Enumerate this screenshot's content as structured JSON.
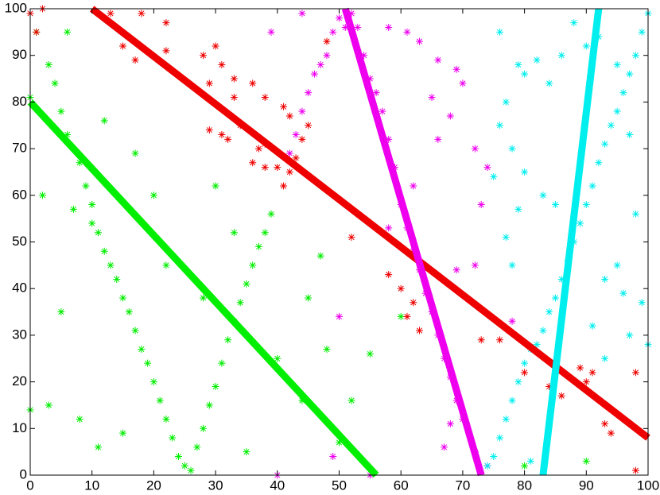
{
  "chart_data": {
    "type": "scatter",
    "xlim": [
      0,
      100
    ],
    "ylim": [
      0,
      100
    ],
    "xticks": [
      0,
      10,
      20,
      30,
      40,
      50,
      60,
      70,
      80,
      90,
      100
    ],
    "yticks": [
      0,
      10,
      20,
      30,
      40,
      50,
      60,
      70,
      80,
      90,
      100
    ],
    "grid": false,
    "series": [
      {
        "mode": "markers",
        "color": "#00ee00",
        "x": [
          0,
          1,
          3,
          4,
          5,
          6,
          7,
          8,
          9,
          10,
          10,
          11,
          12,
          13,
          14,
          15,
          16,
          17,
          18,
          19,
          20,
          21,
          22,
          23,
          24,
          25,
          26,
          27,
          28,
          29,
          30,
          31,
          32,
          33,
          34,
          35,
          36,
          37,
          38,
          39,
          6,
          2,
          5,
          8,
          11,
          15,
          20,
          30,
          35,
          40,
          45,
          48,
          50,
          52,
          3,
          0,
          7,
          12,
          17,
          22,
          28,
          44,
          33,
          60,
          80,
          90,
          55,
          47
        ],
        "y": [
          81,
          95,
          88,
          84,
          78,
          73,
          70,
          67,
          62,
          58,
          54,
          52,
          48,
          45,
          42,
          38,
          35,
          31,
          27,
          24,
          20,
          16,
          12,
          8,
          4,
          2,
          1,
          6,
          10,
          15,
          19,
          24,
          29,
          33,
          37,
          41,
          45,
          49,
          52,
          56,
          95,
          60,
          35,
          12,
          6,
          9,
          60,
          62,
          5,
          25,
          38,
          27,
          7,
          16,
          15,
          14,
          57,
          76,
          69,
          45,
          38,
          16,
          52,
          34,
          2,
          3,
          26,
          47
        ]
      },
      {
        "mode": "markers",
        "color": "#ee0000",
        "x": [
          0,
          1,
          2,
          13,
          18,
          15,
          17,
          22,
          22,
          28,
          30,
          29,
          31,
          33,
          33,
          36,
          38,
          34,
          37,
          38,
          40,
          41,
          42,
          43,
          44,
          45,
          41,
          42,
          36,
          29,
          31,
          38,
          52,
          58,
          60,
          61,
          62,
          63,
          73,
          76,
          80,
          84,
          86,
          89,
          90,
          91,
          93,
          94,
          98,
          99,
          98,
          48,
          32
        ],
        "y": [
          99,
          95,
          100,
          99,
          99,
          92,
          89,
          97,
          91,
          90,
          92,
          84,
          88,
          85,
          81,
          84,
          81,
          75,
          70,
          66,
          66,
          62,
          65,
          68,
          72,
          75,
          79,
          77,
          67,
          74,
          73,
          71,
          51,
          43,
          40,
          34,
          37,
          31,
          29,
          29,
          22,
          19,
          17,
          23,
          20,
          22,
          11,
          9,
          22,
          9,
          1,
          93,
          72
        ]
      },
      {
        "mode": "markers",
        "color": "#ee00ee",
        "x": [
          42,
          43,
          44,
          45,
          46,
          47,
          48,
          49,
          50,
          51,
          52,
          53,
          54,
          55,
          56,
          57,
          58,
          59,
          60,
          61,
          62,
          63,
          64,
          65,
          66,
          67,
          68,
          69,
          70,
          71,
          72,
          74,
          39,
          44,
          58,
          61,
          63,
          66,
          69,
          70,
          72,
          74,
          66,
          68,
          65,
          62,
          73,
          72,
          69,
          58,
          55,
          49,
          50,
          40,
          78,
          68,
          67
        ],
        "y": [
          69,
          73,
          78,
          82,
          86,
          88,
          90,
          95,
          98,
          96,
          99,
          96,
          90,
          85,
          82,
          78,
          72,
          66,
          58,
          53,
          48,
          44,
          39,
          35,
          30,
          25,
          21,
          16,
          12,
          9,
          5,
          2,
          95,
          99,
          96,
          95,
          93,
          89,
          87,
          84,
          70,
          66,
          72,
          77,
          81,
          62,
          58,
          45,
          44,
          53,
          0,
          4,
          34,
          0,
          33,
          11,
          6
        ]
      },
      {
        "mode": "markers",
        "color": "#00eeee",
        "x": [
          74,
          75,
          76,
          77,
          78,
          79,
          80,
          81,
          82,
          83,
          84,
          85,
          86,
          87,
          88,
          89,
          90,
          91,
          92,
          93,
          94,
          95,
          96,
          97,
          98,
          99,
          100,
          76,
          77,
          79,
          80,
          82,
          84,
          86,
          88,
          90,
          92,
          95,
          97,
          98,
          99,
          100,
          97,
          95,
          93,
          76,
          78,
          80,
          83,
          85,
          79,
          77,
          78,
          91,
          93,
          96,
          81,
          75
        ],
        "y": [
          2,
          4,
          8,
          12,
          16,
          20,
          24,
          27,
          28,
          31,
          35,
          38,
          42,
          46,
          50,
          54,
          58,
          62,
          67,
          71,
          75,
          78,
          82,
          86,
          90,
          95,
          99,
          95,
          80,
          88,
          86,
          89,
          84,
          90,
          97,
          92,
          94,
          88,
          73,
          56,
          37,
          28,
          30,
          45,
          42,
          75,
          70,
          65,
          60,
          58,
          57,
          51,
          45,
          32,
          25,
          39,
          3,
          64
        ]
      },
      {
        "mode": "lines",
        "color": "#00ee00",
        "x": [
          0,
          56
        ],
        "y": [
          80,
          0
        ]
      },
      {
        "mode": "lines",
        "color": "#ee0000",
        "x": [
          10,
          100
        ],
        "y": [
          100,
          8
        ]
      },
      {
        "mode": "lines",
        "color": "#ee00ee",
        "x": [
          51,
          73
        ],
        "y": [
          100,
          0
        ]
      },
      {
        "mode": "lines",
        "color": "#00eeee",
        "x": [
          83,
          92
        ],
        "y": [
          0,
          100
        ]
      }
    ]
  }
}
